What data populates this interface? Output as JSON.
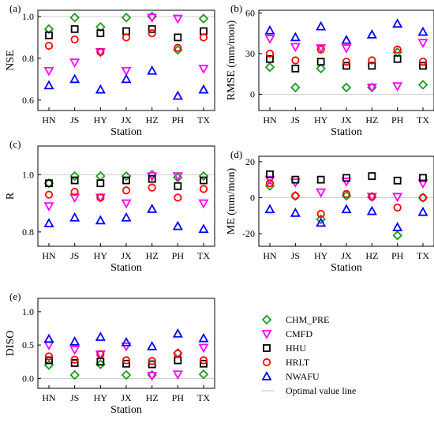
{
  "colors": {
    "CHM_PRE": "#1e9a1e",
    "CMFD": "#ff00ff",
    "HHU": "#000000",
    "HRLT": "#ff0000",
    "NWAFU": "#0000ff",
    "optimal_line": "#cccccc"
  },
  "chart_data": [
    {
      "type": "scatter",
      "panel": "(a)",
      "ylabel": "NSE",
      "xlabel": "Station",
      "categories": [
        "HN",
        "JS",
        "HY",
        "JX",
        "HZ",
        "PH",
        "TX"
      ],
      "yticks": [
        0.6,
        0.8,
        1.0
      ],
      "ylim": [
        0.55,
        1.03
      ],
      "optimal": 1.0,
      "series": [
        {
          "name": "CHM_PRE",
          "marker": "diamond",
          "values": [
            0.94,
            0.995,
            0.95,
            0.995,
            1.0,
            0.84,
            0.99
          ]
        },
        {
          "name": "CMFD",
          "marker": "tri-down",
          "values": [
            0.74,
            0.78,
            0.83,
            0.74,
            0.995,
            0.99,
            0.75
          ]
        },
        {
          "name": "HHU",
          "marker": "square",
          "values": [
            0.91,
            0.94,
            0.92,
            0.93,
            0.94,
            0.9,
            0.93
          ]
        },
        {
          "name": "HRLT",
          "marker": "circle",
          "values": [
            0.86,
            0.89,
            0.83,
            0.9,
            0.92,
            0.85,
            0.9
          ]
        },
        {
          "name": "NWAFU",
          "marker": "tri-up",
          "values": [
            0.67,
            0.7,
            0.65,
            0.7,
            0.74,
            0.62,
            0.65
          ]
        }
      ]
    },
    {
      "type": "scatter",
      "panel": "(b)",
      "ylabel": "RMSE (mm/mon)",
      "xlabel": "Station",
      "categories": [
        "HN",
        "JS",
        "HY",
        "JX",
        "HZ",
        "PH",
        "TX"
      ],
      "yticks": [
        0,
        30,
        60
      ],
      "ylim": [
        -12,
        62
      ],
      "optimal": 0,
      "series": [
        {
          "name": "CHM_PRE",
          "marker": "diamond",
          "values": [
            20,
            5,
            19,
            5,
            5,
            31,
            7
          ]
        },
        {
          "name": "CMFD",
          "marker": "tri-down",
          "values": [
            41,
            35,
            34,
            34,
            5,
            6,
            38
          ]
        },
        {
          "name": "HHU",
          "marker": "square",
          "values": [
            26,
            19,
            24,
            21,
            21,
            26,
            21
          ]
        },
        {
          "name": "HRLT",
          "marker": "circle",
          "values": [
            30,
            25,
            33,
            24,
            25,
            33,
            24
          ]
        },
        {
          "name": "NWAFU",
          "marker": "tri-up",
          "values": [
            47,
            42,
            50,
            40,
            44,
            52,
            46
          ]
        }
      ]
    },
    {
      "type": "scatter",
      "panel": "(c)",
      "ylabel": "R",
      "xlabel": "Station",
      "categories": [
        "HN",
        "JS",
        "HY",
        "JX",
        "HZ",
        "PH",
        "TX"
      ],
      "yticks": [
        0.8,
        1.0
      ],
      "ylim": [
        0.75,
        1.1
      ],
      "optimal": 1.0,
      "series": [
        {
          "name": "CHM_PRE",
          "marker": "diamond",
          "values": [
            0.97,
            0.995,
            0.995,
            0.995,
            1.0,
            0.99,
            0.995
          ]
        },
        {
          "name": "CMFD",
          "marker": "tri-down",
          "values": [
            0.89,
            0.92,
            0.92,
            0.9,
            0.995,
            0.995,
            0.9
          ]
        },
        {
          "name": "HHU",
          "marker": "square",
          "values": [
            0.97,
            0.98,
            0.97,
            0.98,
            0.985,
            0.96,
            0.98
          ]
        },
        {
          "name": "HRLT",
          "marker": "circle",
          "values": [
            0.93,
            0.94,
            0.92,
            0.945,
            0.955,
            0.92,
            0.95
          ]
        },
        {
          "name": "NWAFU",
          "marker": "tri-up",
          "values": [
            0.83,
            0.85,
            0.84,
            0.85,
            0.88,
            0.82,
            0.81
          ]
        }
      ]
    },
    {
      "type": "scatter",
      "panel": "(d)",
      "ylabel": "ME (mm/mon)",
      "xlabel": "Station",
      "categories": [
        "HN",
        "JS",
        "HY",
        "JX",
        "HZ",
        "PH",
        "TX"
      ],
      "yticks": [
        -20,
        0,
        20
      ],
      "ylim": [
        -27,
        23
      ],
      "optimal": 0,
      "series": [
        {
          "name": "CHM_PRE",
          "marker": "diamond",
          "values": [
            6.5,
            1,
            -12,
            1,
            0.5,
            -21,
            0
          ]
        },
        {
          "name": "CMFD",
          "marker": "tri-down",
          "values": [
            10,
            8.5,
            3,
            9,
            0.5,
            0.5,
            8
          ]
        },
        {
          "name": "HHU",
          "marker": "square",
          "values": [
            13,
            10,
            10,
            11,
            12,
            9.5,
            11
          ]
        },
        {
          "name": "HRLT",
          "marker": "circle",
          "values": [
            8,
            1,
            -9,
            2,
            0.5,
            -5.5,
            0
          ]
        },
        {
          "name": "NWAFU",
          "marker": "tri-up",
          "values": [
            -6.5,
            -8.5,
            -14,
            -6.5,
            -7.5,
            -16.5,
            -8
          ]
        }
      ]
    },
    {
      "type": "scatter",
      "panel": "(e)",
      "ylabel": "DISO",
      "xlabel": "Station",
      "categories": [
        "HN",
        "JS",
        "HY",
        "JX",
        "HZ",
        "PH",
        "TX"
      ],
      "yticks": [
        0.0,
        0.5,
        1.0
      ],
      "ylim": [
        -0.15,
        1.2
      ],
      "optimal": 0,
      "series": [
        {
          "name": "CHM_PRE",
          "marker": "diamond",
          "values": [
            0.2,
            0.05,
            0.21,
            0.05,
            0.05,
            0.38,
            0.06
          ]
        },
        {
          "name": "CMFD",
          "marker": "tri-down",
          "values": [
            0.5,
            0.43,
            0.36,
            0.48,
            0.04,
            0.06,
            0.46
          ]
        },
        {
          "name": "HHU",
          "marker": "square",
          "values": [
            0.27,
            0.23,
            0.25,
            0.22,
            0.21,
            0.27,
            0.22
          ]
        },
        {
          "name": "HRLT",
          "marker": "circle",
          "values": [
            0.33,
            0.28,
            0.36,
            0.27,
            0.26,
            0.37,
            0.27
          ]
        },
        {
          "name": "NWAFU",
          "marker": "tri-up",
          "values": [
            0.59,
            0.55,
            0.62,
            0.54,
            0.48,
            0.67,
            0.6
          ]
        }
      ]
    }
  ],
  "legend": {
    "items": [
      {
        "series": "CHM_PRE",
        "label": "CHM_PRE"
      },
      {
        "series": "CMFD",
        "label": "CMFD"
      },
      {
        "series": "HHU",
        "label": "HHU"
      },
      {
        "series": "HRLT",
        "label": "HRLT"
      },
      {
        "series": "NWAFU",
        "label": "NWAFU"
      }
    ],
    "optimal_label": "Optimal value line"
  }
}
